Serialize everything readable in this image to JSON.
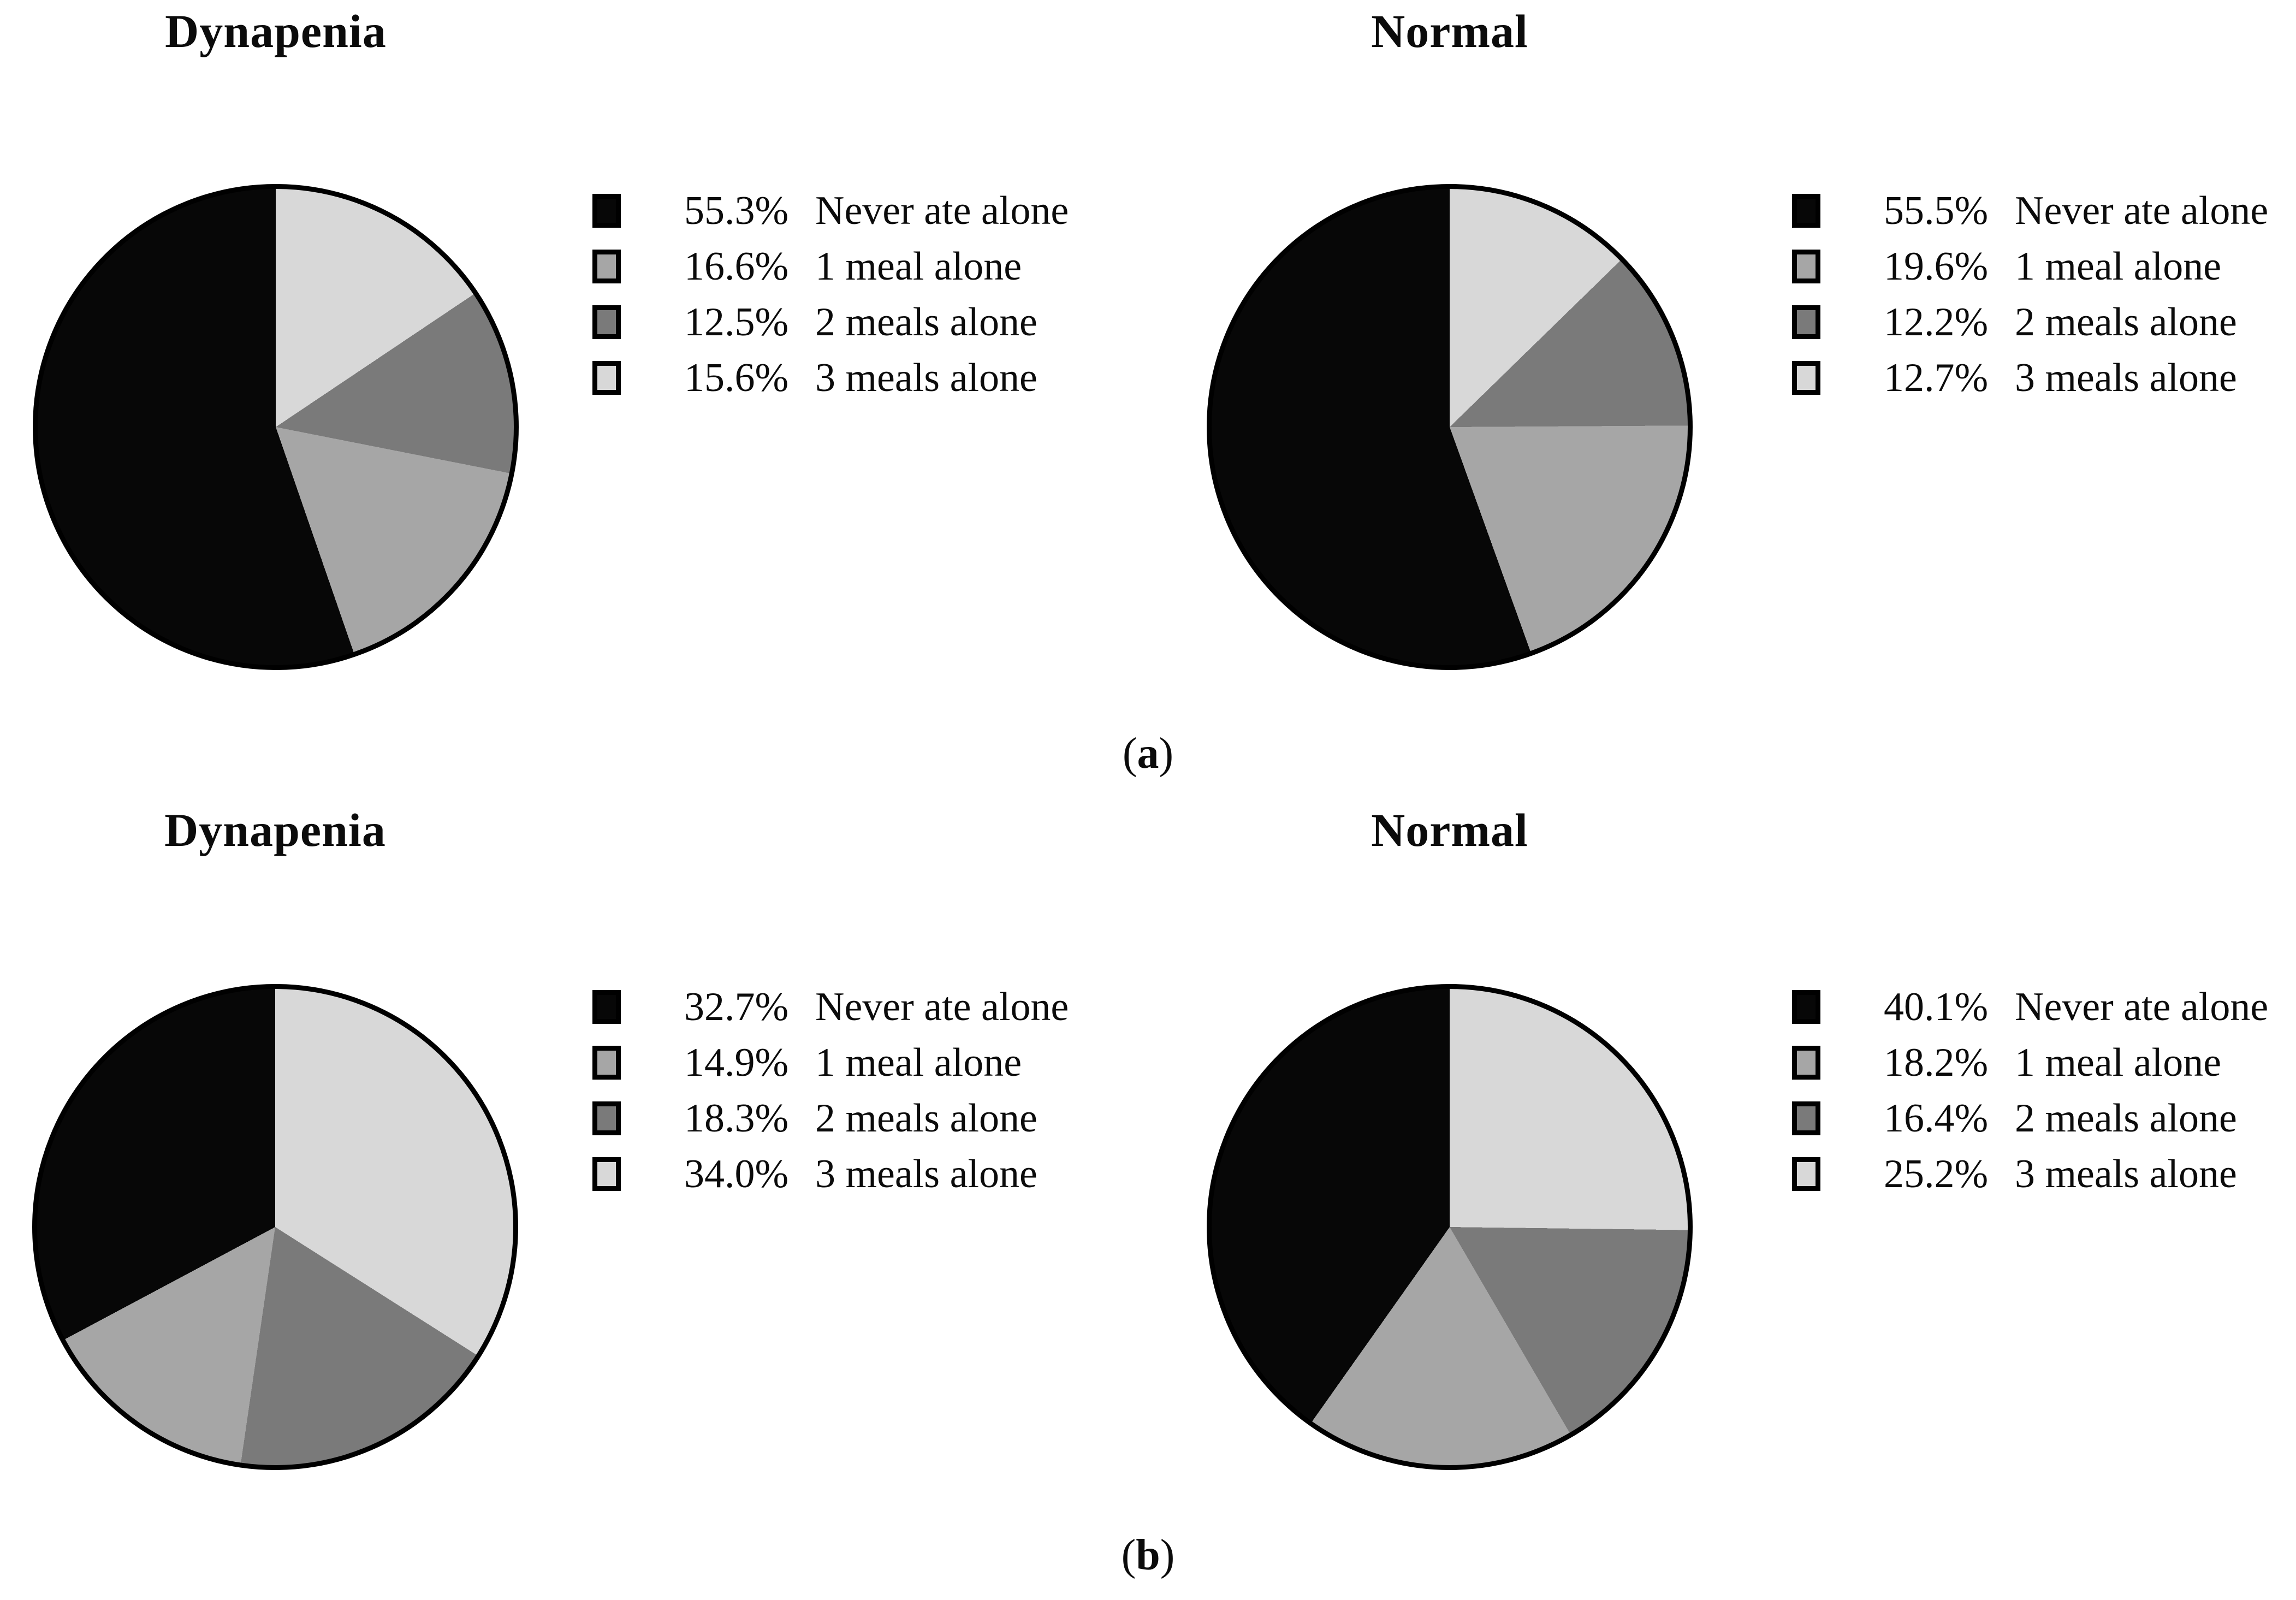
{
  "figure": {
    "background": "#ffffff",
    "outline_color": "#000000"
  },
  "panel_labels": {
    "a": {
      "open": "(",
      "letter": "a",
      "close": ")"
    },
    "b": {
      "open": "(",
      "letter": "b",
      "close": ")"
    }
  },
  "chart_data": [
    {
      "type": "pie",
      "panel": "a",
      "title": "Dynapenia",
      "start_angle": "12-oclock",
      "draw_direction": "counterclockwise-from-top (clockwise order: 3 meals, 2 meals, 1 meal, never)",
      "legend_position": "right",
      "slices": [
        {
          "label": "Never ate alone",
          "value": 55.3,
          "pct_label": "55.3%",
          "color": "#070707"
        },
        {
          "label": "1 meal alone",
          "value": 16.6,
          "pct_label": "16.6%",
          "color": "#a6a6a6"
        },
        {
          "label": "2 meals alone",
          "value": 12.5,
          "pct_label": "12.5%",
          "color": "#7a7a7a"
        },
        {
          "label": "3 meals alone",
          "value": 15.6,
          "pct_label": "15.6%",
          "color": "#d8d8d8"
        }
      ]
    },
    {
      "type": "pie",
      "panel": "a",
      "title": "Normal",
      "start_angle": "12-oclock",
      "draw_direction": "counterclockwise-from-top (clockwise order: 3 meals, 2 meals, 1 meal, never)",
      "legend_position": "right",
      "slices": [
        {
          "label": "Never ate alone",
          "value": 55.5,
          "pct_label": "55.5%",
          "color": "#070707"
        },
        {
          "label": "1 meal alone",
          "value": 19.6,
          "pct_label": "19.6%",
          "color": "#a6a6a6"
        },
        {
          "label": "2 meals alone",
          "value": 12.2,
          "pct_label": "12.2%",
          "color": "#7a7a7a"
        },
        {
          "label": "3 meals alone",
          "value": 12.7,
          "pct_label": "12.7%",
          "color": "#d8d8d8"
        }
      ]
    },
    {
      "type": "pie",
      "panel": "b",
      "title": "Dynapenia",
      "start_angle": "12-oclock",
      "draw_direction": "counterclockwise-from-top (clockwise order: 3 meals, 2 meals, 1 meal, never)",
      "legend_position": "right",
      "slices": [
        {
          "label": "Never ate alone",
          "value": 32.7,
          "pct_label": "32.7%",
          "color": "#070707"
        },
        {
          "label": "1 meal alone",
          "value": 14.9,
          "pct_label": "14.9%",
          "color": "#a6a6a6"
        },
        {
          "label": "2 meals alone",
          "value": 18.3,
          "pct_label": "18.3%",
          "color": "#7a7a7a"
        },
        {
          "label": "3 meals alone",
          "value": 34.0,
          "pct_label": "34.0%",
          "color": "#d8d8d8"
        }
      ]
    },
    {
      "type": "pie",
      "panel": "b",
      "title": "Normal",
      "start_angle": "12-oclock",
      "draw_direction": "counterclockwise-from-top (clockwise order: 3 meals, 2 meals, 1 meal, never)",
      "legend_position": "right",
      "slices": [
        {
          "label": "Never ate alone",
          "value": 40.1,
          "pct_label": "40.1%",
          "color": "#070707"
        },
        {
          "label": "1 meal alone",
          "value": 18.2,
          "pct_label": "18.2%",
          "color": "#a6a6a6"
        },
        {
          "label": "2 meals alone",
          "value": 16.4,
          "pct_label": "16.4%",
          "color": "#7a7a7a"
        },
        {
          "label": "3 meals alone",
          "value": 25.2,
          "pct_label": "25.2%",
          "color": "#d8d8d8"
        }
      ]
    }
  ]
}
